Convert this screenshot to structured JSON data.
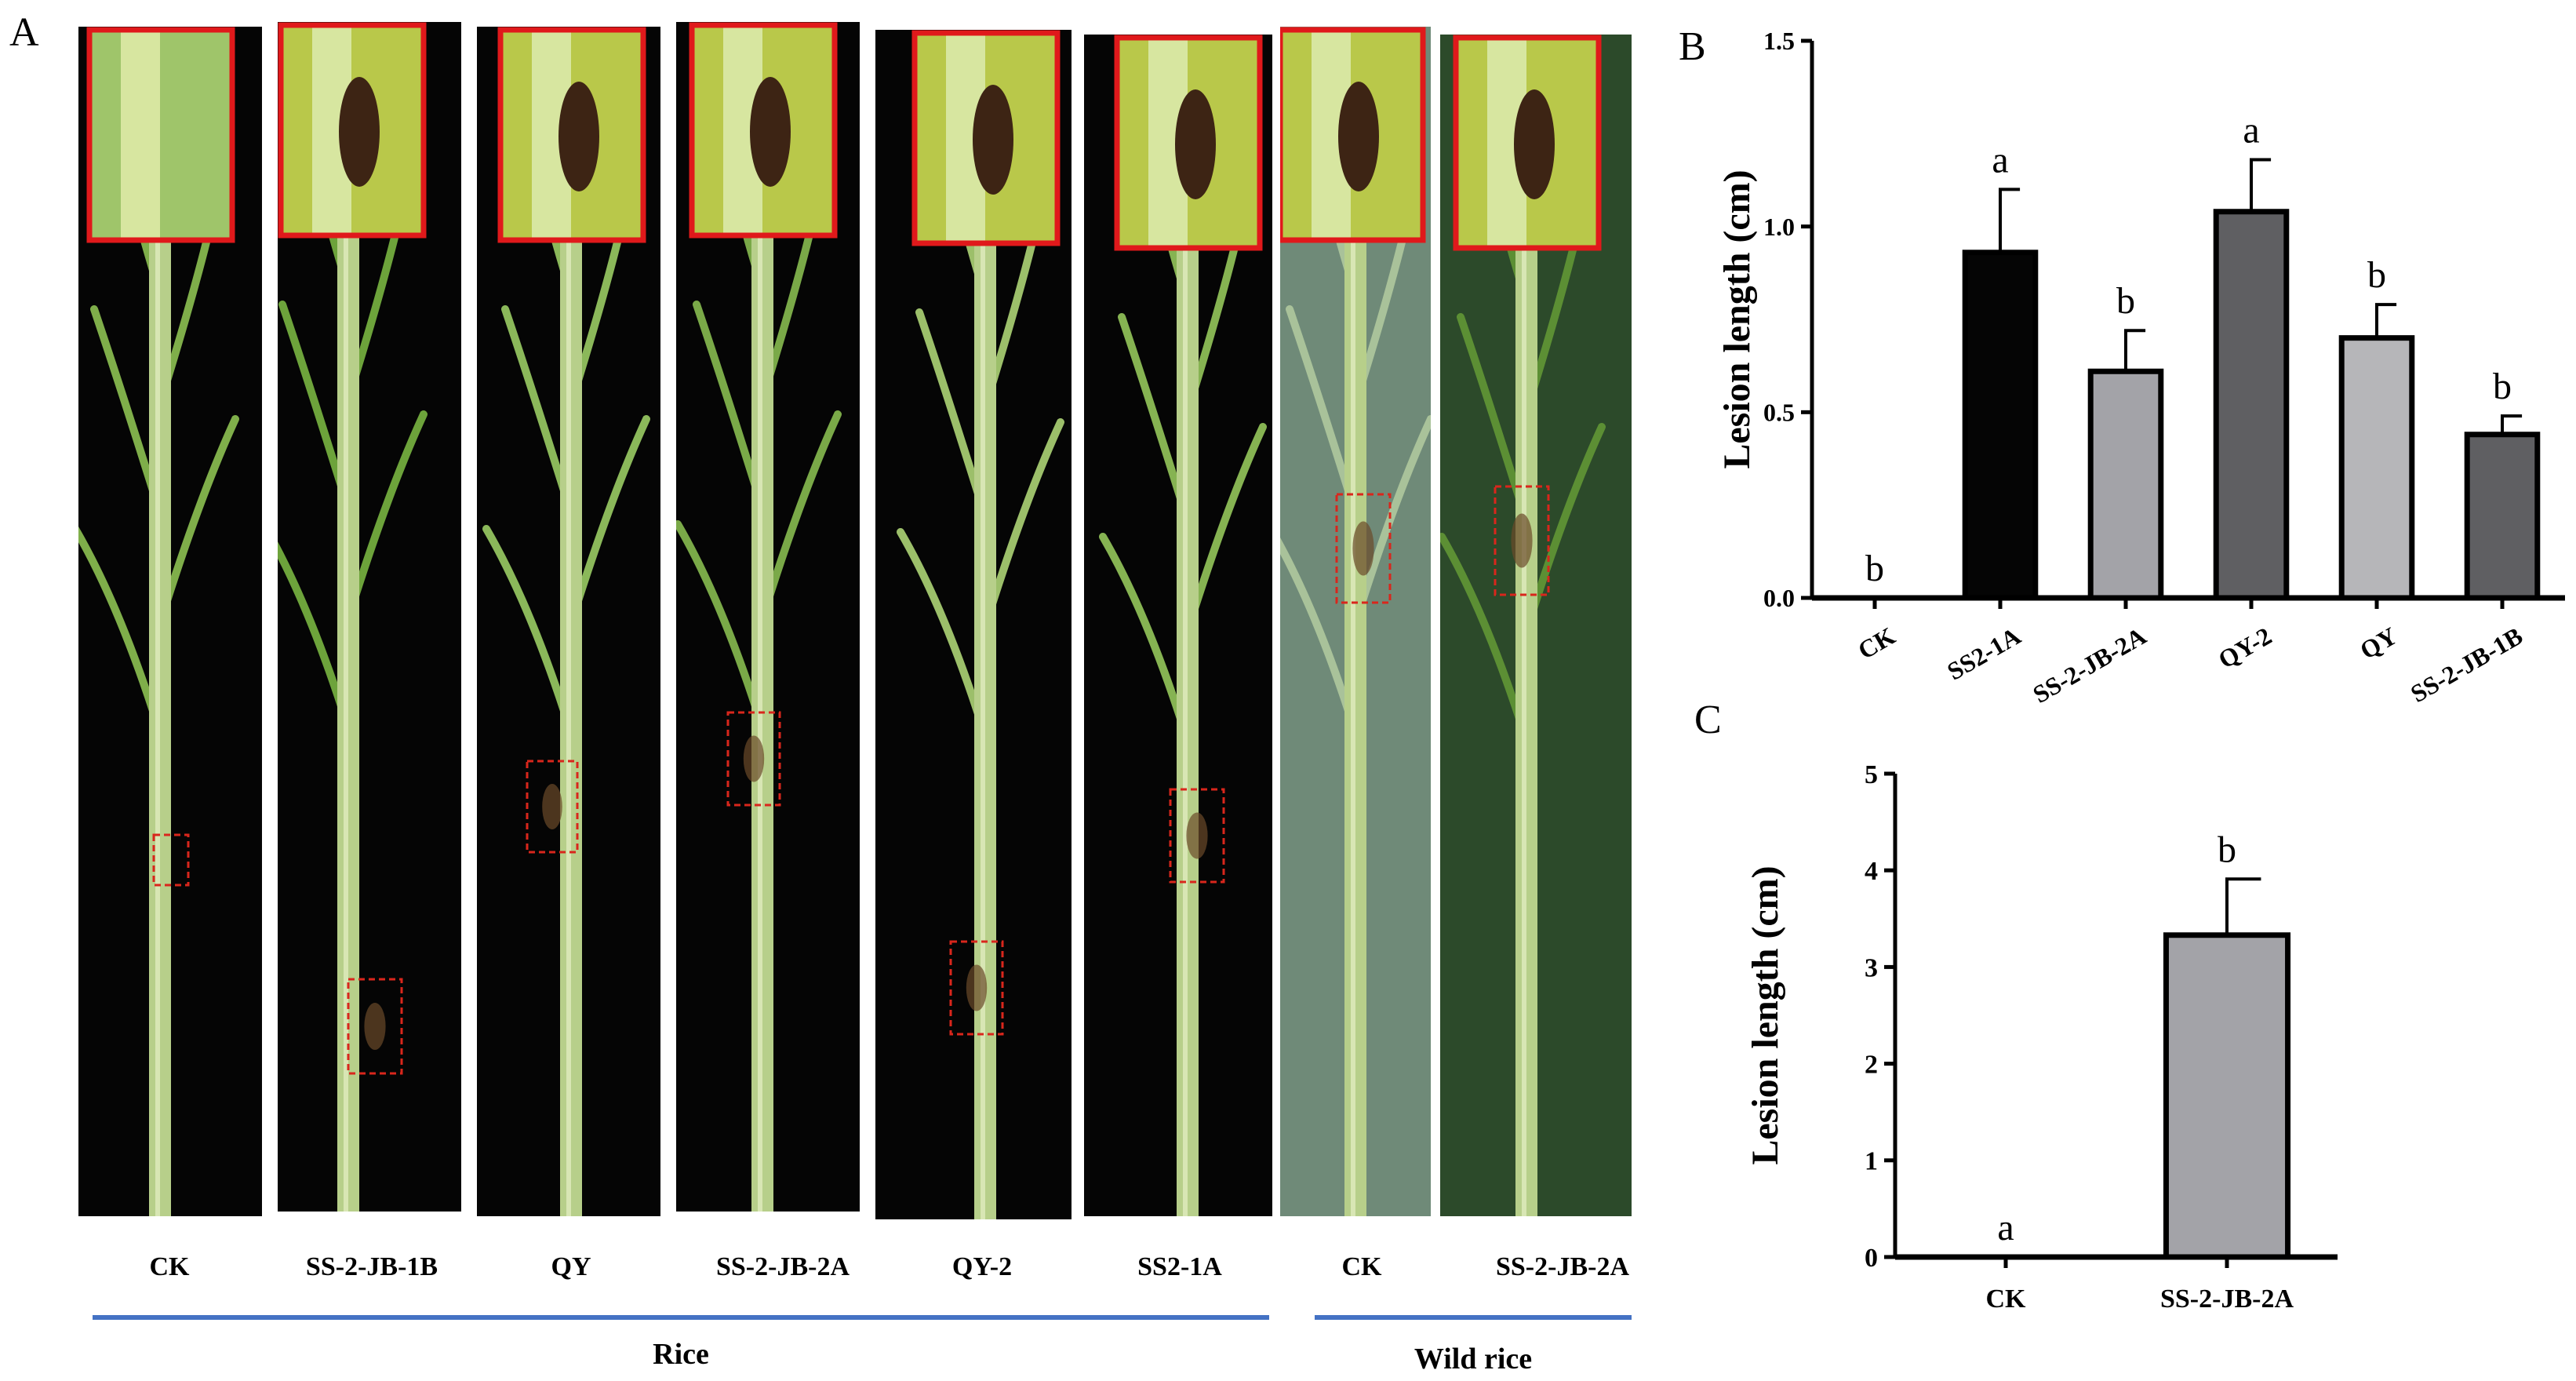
{
  "panels": {
    "a": "A",
    "b": "B",
    "c": "C"
  },
  "photo_captions": [
    "CK",
    "SS-2-JB-1B",
    "QY",
    "SS-2-JB-2A",
    "QY-2",
    "SS2-1A",
    "CK",
    "SS-2-JB-2A"
  ],
  "groups": {
    "rice": "Rice",
    "wild_rice": "Wild rice"
  },
  "colors": {
    "group_line": "#4472c4",
    "inset_border": "#e0191b",
    "lesion_box": "#d9261c"
  },
  "chart_data": [
    {
      "type": "bar",
      "ylabel": "Lesion length (cm)",
      "xlabel": "",
      "ylim": [
        0,
        1.5
      ],
      "yticks": [
        "0.0",
        "0.5",
        "1.0",
        "1.5"
      ],
      "categories": [
        "CK",
        "SS2-1A",
        "SS-2-JB-2A",
        "QY-2",
        "QY",
        "SS-2-JB-1B"
      ],
      "values": [
        0,
        0.93,
        0.61,
        1.04,
        0.7,
        0.44
      ],
      "errors": [
        0,
        0.17,
        0.11,
        0.14,
        0.09,
        0.05
      ],
      "letters": [
        "b",
        "a",
        "b",
        "a",
        "b",
        "b"
      ],
      "bar_colors": [
        "#ffffff",
        "#050505",
        "#a3a3a8",
        "#5f5f62",
        "#b6b6b9",
        "#5f5f62"
      ]
    },
    {
      "type": "bar",
      "ylabel": "Lesion length (cm)",
      "xlabel": "",
      "ylim": [
        0,
        5
      ],
      "yticks": [
        "0",
        "1",
        "2",
        "3",
        "4",
        "5"
      ],
      "categories": [
        "CK",
        "SS-2-JB-2A"
      ],
      "values": [
        0,
        3.33
      ],
      "errors": [
        0,
        0.58
      ],
      "letters": [
        "a",
        "b"
      ],
      "bar_colors": [
        "#ffffff",
        "#a3a3a8"
      ]
    }
  ]
}
